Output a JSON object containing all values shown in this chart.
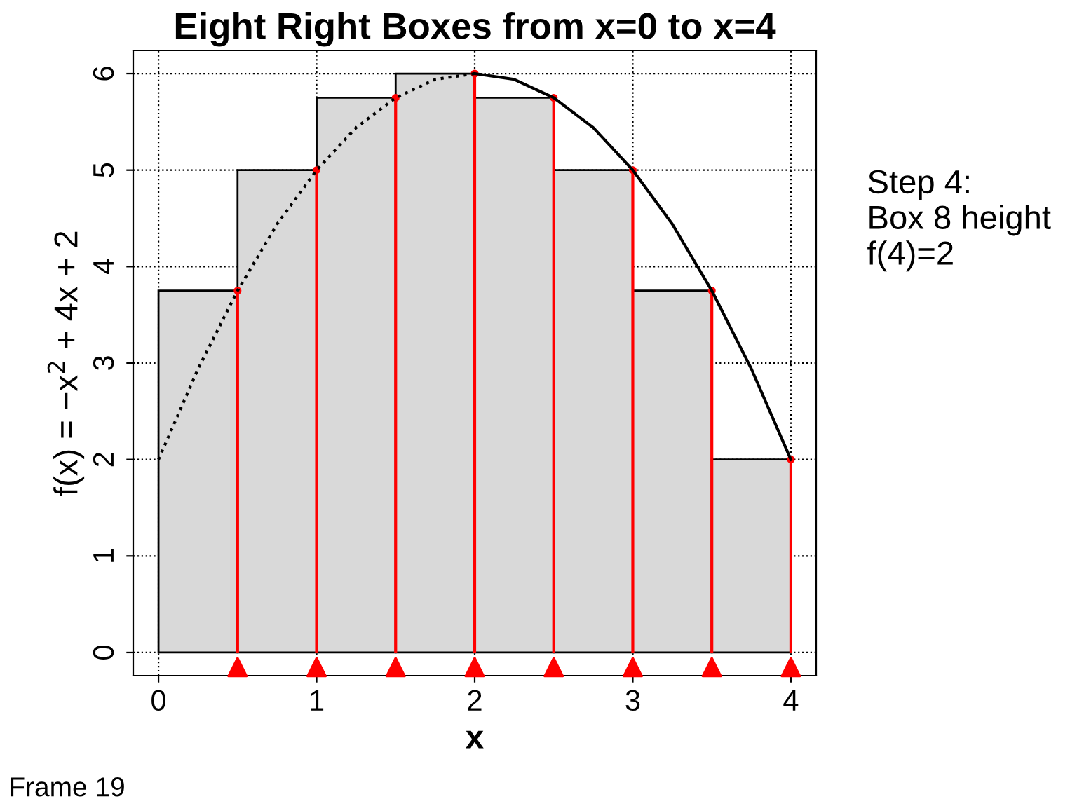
{
  "chart_data": {
    "type": "bar",
    "title": "Eight Right Boxes from x=0 to x=4",
    "xlabel": "x",
    "ylabel": "f(x) = −x$^{2}$ + 4x + 2",
    "xlim": [
      -0.16,
      4.16
    ],
    "ylim": [
      -0.24,
      6.24
    ],
    "xticks": [
      0,
      1,
      2,
      3,
      4
    ],
    "yticks": [
      0,
      1,
      2,
      3,
      4,
      5,
      6
    ],
    "grid": true,
    "series": [
      {
        "color": "#d9d9d9",
        "x": [
          0.25,
          0.75,
          1.25,
          1.75,
          2.25,
          2.75,
          3.25,
          3.75
        ],
        "values": [
          3.75,
          5,
          5.75,
          6,
          5.75,
          5,
          3.75,
          2
        ]
      },
      {
        "type": "lollipop",
        "color": "#ff0000",
        "marker": "circle",
        "x": [
          0.5,
          1,
          1.5,
          2,
          2.5,
          3,
          3.5,
          4
        ],
        "values": [
          3.75,
          5,
          5.75,
          6,
          5.75,
          5,
          3.75,
          2
        ]
      },
      {
        "type": "line",
        "color": "#000000",
        "line_style": "dotted",
        "x": [
          0,
          0.25,
          0.5,
          0.75,
          1,
          1.25,
          1.5,
          1.75,
          2
        ],
        "values": [
          2,
          2.94,
          3.75,
          4.44,
          5,
          5.44,
          5.75,
          5.94,
          6
        ]
      },
      {
        "type": "line",
        "color": "#000000",
        "line_style": "solid",
        "x": [
          2,
          2.25,
          2.5,
          2.75,
          3,
          3.25,
          3.5,
          3.75,
          4
        ],
        "values": [
          6,
          5.94,
          5.75,
          5.44,
          5,
          4.44,
          3.75,
          2.94,
          2
        ]
      },
      {
        "type": "scatter",
        "color": "#ff0000",
        "marker": "triangle",
        "x": [
          0.5,
          1,
          1.5,
          2,
          2.5,
          3,
          3.5,
          4
        ],
        "values": [
          -0.15,
          -0.15,
          -0.15,
          -0.15,
          -0.15,
          -0.15,
          -0.15,
          -0.15
        ]
      }
    ],
    "annotations": [
      "Step 4:\nBox 8 height\nf(4)=2",
      "Frame 19"
    ]
  }
}
